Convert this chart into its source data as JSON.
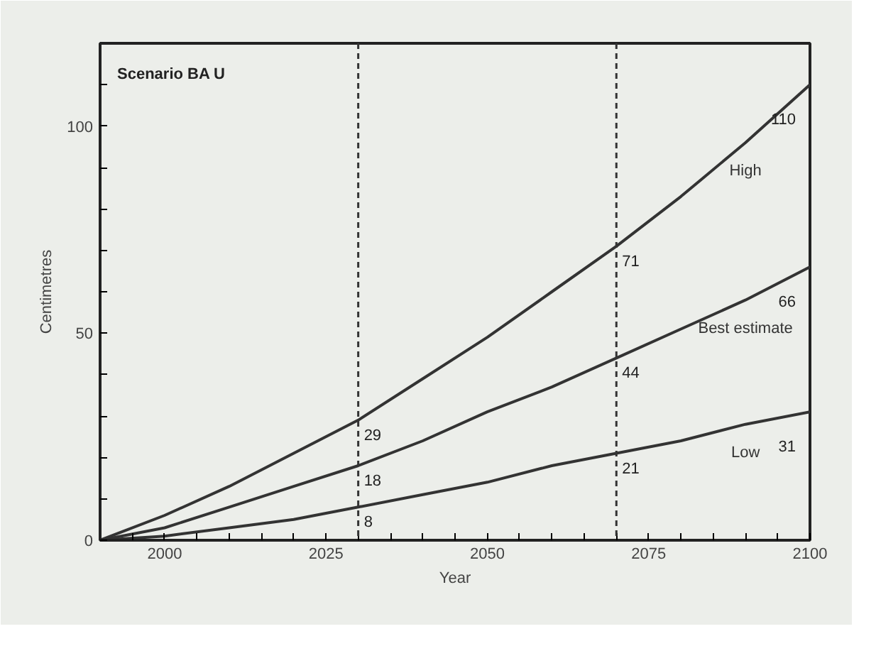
{
  "chart_data": {
    "type": "line",
    "xlabel": "Year",
    "ylabel": "Centimetres",
    "annotations": [
      "Scenario BA U"
    ],
    "x": [
      1990,
      2000,
      2010,
      2020,
      2030,
      2040,
      2050,
      2060,
      2070,
      2080,
      2090,
      2100
    ],
    "series": [
      {
        "name": "High",
        "color": "#333333",
        "values": [
          0,
          6,
          13,
          21,
          29,
          39,
          49,
          60,
          71,
          83,
          96,
          110
        ],
        "value_labels": [
          null,
          null,
          null,
          null,
          "29",
          null,
          null,
          null,
          "71",
          null,
          null,
          "110"
        ]
      },
      {
        "name": "Best estimate",
        "color": "#333333",
        "values": [
          0,
          3,
          8,
          13,
          18,
          24,
          31,
          37,
          44,
          51,
          58,
          66
        ],
        "value_labels": [
          null,
          null,
          null,
          null,
          "18",
          null,
          null,
          null,
          "44",
          null,
          null,
          "66"
        ]
      },
      {
        "name": "Low",
        "color": "#333333",
        "values": [
          0,
          1,
          3,
          5,
          8,
          11,
          14,
          18,
          21,
          24,
          28,
          31
        ],
        "value_labels": [
          null,
          null,
          null,
          null,
          "8",
          null,
          null,
          null,
          "21",
          null,
          null,
          "31"
        ]
      }
    ],
    "xlim": [
      1990,
      2100
    ],
    "xticks": [
      {
        "value": 1995,
        "label": null
      },
      2000,
      {
        "value": 2005,
        "label": null
      },
      {
        "value": 2010,
        "label": null
      },
      {
        "value": 2015,
        "label": null
      },
      {
        "value": 2020,
        "label": null
      },
      2025,
      {
        "value": 2030,
        "label": null
      },
      {
        "value": 2035,
        "label": null
      },
      {
        "value": 2040,
        "label": null
      },
      {
        "value": 2045,
        "label": null
      },
      2050,
      {
        "value": 2055,
        "label": null
      },
      {
        "value": 2060,
        "label": null
      },
      {
        "value": 2065,
        "label": null
      },
      {
        "value": 2070,
        "label": null
      },
      2075,
      {
        "value": 2080,
        "label": null
      },
      {
        "value": 2085,
        "label": null
      },
      {
        "value": 2090,
        "label": null
      },
      {
        "value": 2095,
        "label": null
      },
      2100
    ],
    "ylim": [
      0,
      120
    ],
    "yticks": [
      0,
      {
        "value": 10,
        "label": null
      },
      {
        "value": 20,
        "label": null
      },
      {
        "value": 30,
        "label": null
      },
      {
        "value": 40,
        "label": null
      },
      50,
      {
        "value": 60,
        "label": null
      },
      {
        "value": 70,
        "label": null
      },
      {
        "value": 80,
        "label": null
      },
      {
        "value": 90,
        "label": null
      },
      100,
      {
        "value": 110,
        "label": null
      }
    ],
    "ref_lines": [
      {
        "axis": "x",
        "value": 2030,
        "color": "#333333",
        "line_style": "dashed"
      },
      {
        "axis": "x",
        "value": 2070,
        "color": "#333333",
        "line_style": "dashed"
      }
    ],
    "grid": false,
    "marker": "none",
    "line_style": "solid"
  }
}
